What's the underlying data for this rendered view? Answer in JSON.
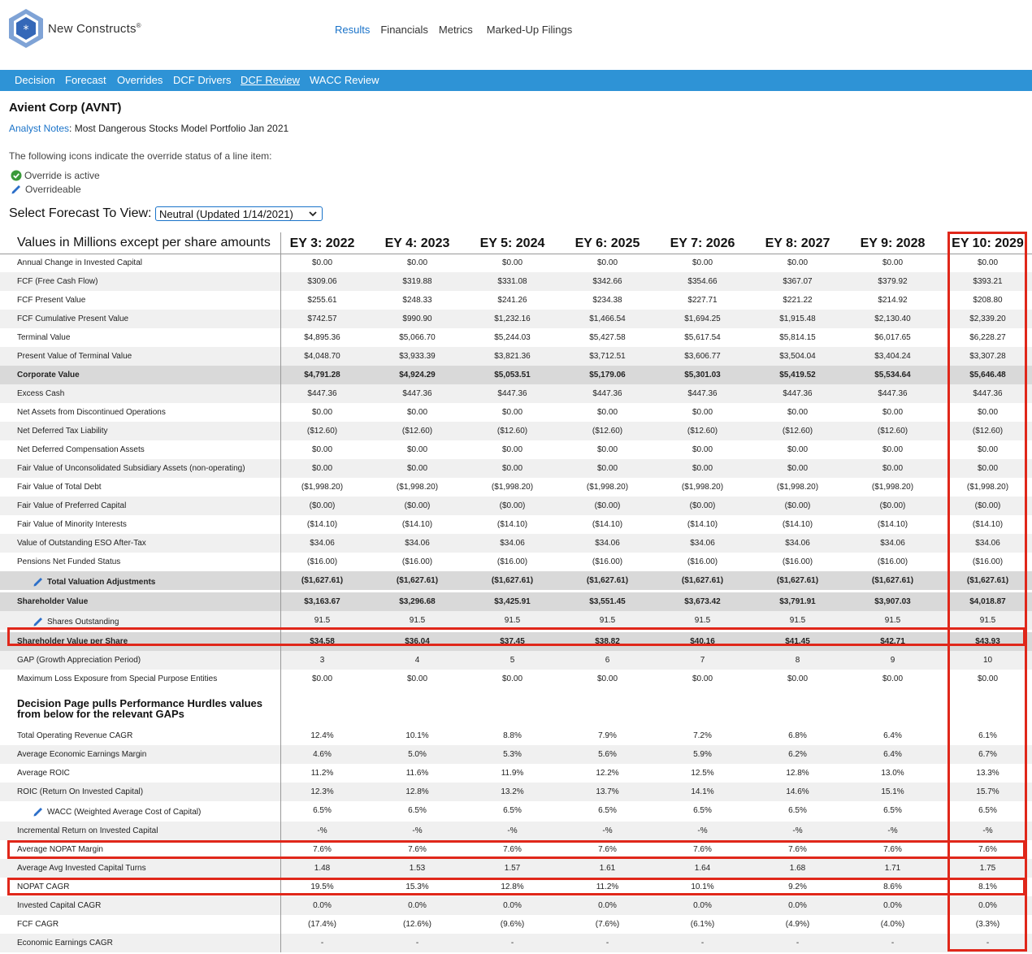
{
  "brand": {
    "name": "New Constructs",
    "mark": "®"
  },
  "top_nav": [
    "Results",
    "Financials",
    "Metrics",
    "Marked-Up Filings"
  ],
  "sub_nav": [
    "Decision",
    "Forecast",
    "Overrides",
    "DCF Drivers",
    "DCF Review",
    "WACC Review"
  ],
  "page_title": "Avient Corp (AVNT)",
  "analyst_notes": {
    "link": "Analyst Notes",
    "sep": ":",
    "text": "Most Dangerous Stocks Model Portfolio Jan 2021"
  },
  "icons_text": "The following icons indicate the override status of a line item:",
  "legend": {
    "active": "Override is active",
    "overrideable": "Overrideable"
  },
  "forecast_select": {
    "label": "Select Forecast To View:",
    "value": "Neutral (Updated 1/14/2021)"
  },
  "table": {
    "header_label": "Values in Millions except per share amounts",
    "years": [
      "EY 3: 2022",
      "EY 4: 2023",
      "EY 5: 2024",
      "EY 6: 2025",
      "EY 7: 2026",
      "EY 8: 2027",
      "EY 9: 2028",
      "EY 10: 2029"
    ],
    "rows": [
      {
        "label": "Annual Change in Invested Capital",
        "values": [
          "$0.00",
          "$0.00",
          "$0.00",
          "$0.00",
          "$0.00",
          "$0.00",
          "$0.00",
          "$0.00"
        ]
      },
      {
        "label": "FCF (Free Cash Flow)",
        "values": [
          "$309.06",
          "$319.88",
          "$331.08",
          "$342.66",
          "$354.66",
          "$367.07",
          "$379.92",
          "$393.21"
        ]
      },
      {
        "label": "FCF Present Value",
        "values": [
          "$255.61",
          "$248.33",
          "$241.26",
          "$234.38",
          "$227.71",
          "$221.22",
          "$214.92",
          "$208.80"
        ]
      },
      {
        "label": "FCF Cumulative Present Value",
        "values": [
          "$742.57",
          "$990.90",
          "$1,232.16",
          "$1,466.54",
          "$1,694.25",
          "$1,915.48",
          "$2,130.40",
          "$2,339.20"
        ]
      },
      {
        "label": "Terminal Value",
        "values": [
          "$4,895.36",
          "$5,066.70",
          "$5,244.03",
          "$5,427.58",
          "$5,617.54",
          "$5,814.15",
          "$6,017.65",
          "$6,228.27"
        ]
      },
      {
        "label": "Present Value of Terminal Value",
        "values": [
          "$4,048.70",
          "$3,933.39",
          "$3,821.36",
          "$3,712.51",
          "$3,606.77",
          "$3,504.04",
          "$3,404.24",
          "$3,307.28"
        ]
      },
      {
        "label": "Corporate Value",
        "values": [
          "$4,791.28",
          "$4,924.29",
          "$5,053.51",
          "$5,179.06",
          "$5,301.03",
          "$5,419.52",
          "$5,534.64",
          "$5,646.48"
        ]
      },
      {
        "label": "Excess Cash",
        "values": [
          "$447.36",
          "$447.36",
          "$447.36",
          "$447.36",
          "$447.36",
          "$447.36",
          "$447.36",
          "$447.36"
        ]
      },
      {
        "label": "Net Assets from Discontinued Operations",
        "values": [
          "$0.00",
          "$0.00",
          "$0.00",
          "$0.00",
          "$0.00",
          "$0.00",
          "$0.00",
          "$0.00"
        ]
      },
      {
        "label": "Net Deferred Tax Liability",
        "values": [
          "($12.60)",
          "($12.60)",
          "($12.60)",
          "($12.60)",
          "($12.60)",
          "($12.60)",
          "($12.60)",
          "($12.60)"
        ]
      },
      {
        "label": "Net Deferred Compensation Assets",
        "values": [
          "$0.00",
          "$0.00",
          "$0.00",
          "$0.00",
          "$0.00",
          "$0.00",
          "$0.00",
          "$0.00"
        ]
      },
      {
        "label": "Fair Value of Unconsolidated Subsidiary Assets (non-operating)",
        "values": [
          "$0.00",
          "$0.00",
          "$0.00",
          "$0.00",
          "$0.00",
          "$0.00",
          "$0.00",
          "$0.00"
        ]
      },
      {
        "label": "Fair Value of Total Debt",
        "values": [
          "($1,998.20)",
          "($1,998.20)",
          "($1,998.20)",
          "($1,998.20)",
          "($1,998.20)",
          "($1,998.20)",
          "($1,998.20)",
          "($1,998.20)"
        ]
      },
      {
        "label": "Fair Value of Preferred Capital",
        "values": [
          "($0.00)",
          "($0.00)",
          "($0.00)",
          "($0.00)",
          "($0.00)",
          "($0.00)",
          "($0.00)",
          "($0.00)"
        ]
      },
      {
        "label": "Fair Value of Minority Interests",
        "values": [
          "($14.10)",
          "($14.10)",
          "($14.10)",
          "($14.10)",
          "($14.10)",
          "($14.10)",
          "($14.10)",
          "($14.10)"
        ]
      },
      {
        "label": "Value of Outstanding ESO After-Tax",
        "values": [
          "$34.06",
          "$34.06",
          "$34.06",
          "$34.06",
          "$34.06",
          "$34.06",
          "$34.06",
          "$34.06"
        ]
      },
      {
        "label": "Pensions Net Funded Status",
        "values": [
          "($16.00)",
          "($16.00)",
          "($16.00)",
          "($16.00)",
          "($16.00)",
          "($16.00)",
          "($16.00)",
          "($16.00)"
        ]
      },
      {
        "label": "Total Valuation Adjustments",
        "values": [
          "($1,627.61)",
          "($1,627.61)",
          "($1,627.61)",
          "($1,627.61)",
          "($1,627.61)",
          "($1,627.61)",
          "($1,627.61)",
          "($1,627.61)"
        ]
      },
      {
        "label": "Shareholder Value",
        "values": [
          "$3,163.67",
          "$3,296.68",
          "$3,425.91",
          "$3,551.45",
          "$3,673.42",
          "$3,791.91",
          "$3,907.03",
          "$4,018.87"
        ]
      },
      {
        "label": "Shares Outstanding",
        "values": [
          "91.5",
          "91.5",
          "91.5",
          "91.5",
          "91.5",
          "91.5",
          "91.5",
          "91.5"
        ]
      },
      {
        "label": "Shareholder Value per Share",
        "values": [
          "$34.58",
          "$36.04",
          "$37.45",
          "$38.82",
          "$40.16",
          "$41.45",
          "$42.71",
          "$43.93"
        ]
      },
      {
        "label": "GAP (Growth Appreciation Period)",
        "values": [
          "3",
          "4",
          "5",
          "6",
          "7",
          "8",
          "9",
          "10"
        ]
      },
      {
        "label": "Maximum Loss Exposure from Special Purpose Entities",
        "values": [
          "$0.00",
          "$0.00",
          "$0.00",
          "$0.00",
          "$0.00",
          "$0.00",
          "$0.00",
          "$0.00"
        ]
      }
    ],
    "section_title": "Decision Page pulls Performance Hurdles values from below for the relevant GAPs",
    "hurdle_rows": [
      {
        "label": "Total Operating Revenue CAGR",
        "values": [
          "12.4%",
          "10.1%",
          "8.8%",
          "7.9%",
          "7.2%",
          "6.8%",
          "6.4%",
          "6.1%"
        ]
      },
      {
        "label": "Average Economic Earnings Margin",
        "values": [
          "4.6%",
          "5.0%",
          "5.3%",
          "5.6%",
          "5.9%",
          "6.2%",
          "6.4%",
          "6.7%"
        ]
      },
      {
        "label": "Average ROIC",
        "values": [
          "11.2%",
          "11.6%",
          "11.9%",
          "12.2%",
          "12.5%",
          "12.8%",
          "13.0%",
          "13.3%"
        ]
      },
      {
        "label": "ROIC (Return On Invested Capital)",
        "values": [
          "12.3%",
          "12.8%",
          "13.2%",
          "13.7%",
          "14.1%",
          "14.6%",
          "15.1%",
          "15.7%"
        ]
      },
      {
        "label": "WACC (Weighted Average Cost of Capital)",
        "values": [
          "6.5%",
          "6.5%",
          "6.5%",
          "6.5%",
          "6.5%",
          "6.5%",
          "6.5%",
          "6.5%"
        ]
      },
      {
        "label": "Incremental Return on Invested Capital",
        "values": [
          "-%",
          "-%",
          "-%",
          "-%",
          "-%",
          "-%",
          "-%",
          "-%"
        ]
      },
      {
        "label": "Average NOPAT Margin",
        "values": [
          "7.6%",
          "7.6%",
          "7.6%",
          "7.6%",
          "7.6%",
          "7.6%",
          "7.6%",
          "7.6%"
        ]
      },
      {
        "label": "Average Avg Invested Capital Turns",
        "values": [
          "1.48",
          "1.53",
          "1.57",
          "1.61",
          "1.64",
          "1.68",
          "1.71",
          "1.75"
        ]
      },
      {
        "label": "NOPAT CAGR",
        "values": [
          "19.5%",
          "15.3%",
          "12.8%",
          "11.2%",
          "10.1%",
          "9.2%",
          "8.6%",
          "8.1%"
        ]
      },
      {
        "label": "Invested Capital CAGR",
        "values": [
          "0.0%",
          "0.0%",
          "0.0%",
          "0.0%",
          "0.0%",
          "0.0%",
          "0.0%",
          "0.0%"
        ]
      },
      {
        "label": "FCF CAGR",
        "values": [
          "(17.4%)",
          "(12.6%)",
          "(9.6%)",
          "(7.6%)",
          "(6.1%)",
          "(4.9%)",
          "(4.0%)",
          "(3.3%)"
        ]
      },
      {
        "label": "Economic Earnings CAGR",
        "values": [
          "-",
          "-",
          "-",
          "-",
          "-",
          "-",
          "-",
          "-"
        ]
      }
    ]
  },
  "colors": {
    "accent": "#2e93d6",
    "link": "#1a73c9",
    "highlight": "#e0271a"
  }
}
